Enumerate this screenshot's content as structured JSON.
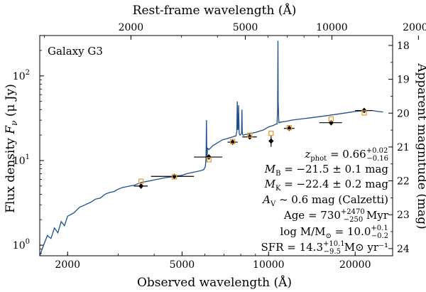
{
  "chart_data": {
    "type": "sed",
    "title": "",
    "panel_label": "Galaxy G3",
    "x_bottom": {
      "label": "Observed wavelength",
      "unit": "(Å)",
      "scale": "log",
      "range": [
        1600,
        27000
      ],
      "ticks": [
        2000,
        5000,
        10000,
        20000
      ],
      "tick_labels": [
        "2000",
        "5000",
        "10000",
        "20000"
      ]
    },
    "x_top": {
      "label": "Rest-frame wavelength",
      "unit": "(Å)",
      "scale": "log",
      "redshift": 0.66,
      "ticks": [
        2000,
        5000,
        10000,
        20000
      ],
      "tick_labels": [
        "2000",
        "5000",
        "10000",
        "20000"
      ]
    },
    "y_left": {
      "label": "Flux density",
      "symbol": "F",
      "symbol_sub": "ν",
      "unit": "(μ Jy)",
      "scale": "log",
      "range": [
        0.75,
        300
      ],
      "ticks": [
        1,
        10,
        100
      ],
      "tick_labels": [
        "10",
        "10",
        "10"
      ],
      "tick_exponents": [
        "0",
        "1",
        "2"
      ]
    },
    "y_right": {
      "label": "Apparent magnitude",
      "unit": "(mag)",
      "ticks": [
        18,
        19,
        20,
        21,
        22,
        23,
        24
      ],
      "tick_labels": [
        "18",
        "19",
        "20",
        "21",
        "22",
        "23",
        "24"
      ]
    },
    "model_color": "#1f4e8c",
    "observed_color": "#000000",
    "model_photometry_color": "#e8a13a",
    "model_spectrum": {
      "x": [
        1600,
        1650,
        1700,
        1750,
        1800,
        1850,
        1900,
        1950,
        2000,
        2100,
        2200,
        2300,
        2400,
        2500,
        2600,
        2700,
        2800,
        2900,
        3000,
        3100,
        3200,
        3300,
        3400,
        3500,
        3600,
        3700,
        3800,
        3900,
        4000,
        4200,
        4400,
        4600,
        4800,
        5000,
        5200,
        5400,
        5600,
        5800,
        5950,
        6030,
        6060,
        6080,
        6100,
        6130,
        6160,
        6200,
        6300,
        6400,
        6500,
        6600,
        6700,
        6800,
        6900,
        7000,
        7100,
        7200,
        7300,
        7400,
        7500,
        7600,
        7700,
        7750,
        7780,
        7800,
        7830,
        7860,
        7900,
        7950,
        8000,
        8050,
        8080,
        8100,
        8130,
        8200,
        8300,
        8500,
        8700,
        9000,
        9200,
        9400,
        9600,
        9800,
        10000,
        10200,
        10400,
        10600,
        10700,
        10750,
        10780,
        10800,
        10850,
        10900,
        11000,
        11500,
        12000,
        13000,
        14000,
        15000,
        16000,
        17000,
        18000,
        19000,
        20000,
        21000,
        22000,
        23000,
        24000,
        25000
      ],
      "y": [
        0.75,
        1.0,
        1.3,
        1.2,
        1.6,
        1.4,
        1.9,
        1.7,
        2.2,
        2.4,
        2.8,
        3.0,
        3.2,
        3.5,
        3.6,
        4.0,
        4.2,
        4.3,
        4.6,
        4.8,
        4.9,
        5.0,
        5.1,
        5.3,
        5.5,
        5.6,
        5.7,
        5.8,
        5.9,
        6.1,
        6.3,
        6.4,
        6.6,
        6.7,
        7.0,
        7.2,
        7.4,
        7.6,
        7.8,
        8.5,
        11.0,
        30.0,
        9.5,
        14.0,
        13.8,
        13.5,
        14.2,
        15.0,
        15.5,
        16.0,
        16.5,
        17.0,
        17.5,
        17.8,
        18.0,
        18.2,
        18.5,
        18.8,
        19.0,
        19.4,
        19.5,
        22.0,
        50.0,
        24.0,
        23.0,
        45.0,
        21.0,
        20.0,
        20.3,
        21.0,
        40.0,
        22.0,
        20.0,
        20.0,
        20.3,
        20.5,
        21.0,
        21.5,
        22.0,
        22.5,
        23.0,
        24.0,
        25.0,
        25.5,
        26.0,
        27.0,
        27.0,
        40.0,
        260.0,
        50.0,
        28.0,
        28.0,
        28.5,
        29.0,
        30.0,
        31.0,
        32.0,
        33.0,
        34.0,
        35.0,
        36.0,
        37.0,
        38.0,
        38.5,
        39.0,
        39.0,
        38.0,
        37.5
      ]
    },
    "observed_points": {
      "x": [
        3600,
        4700,
        6200,
        7500,
        8600,
        10200,
        11800,
        16500,
        21500
      ],
      "y": [
        5.0,
        6.5,
        11.0,
        16.5,
        19.0,
        17.0,
        24.0,
        28.0,
        39.0
      ],
      "xerr_low": [
        200,
        800,
        700,
        300,
        500,
        200,
        500,
        1500,
        1500
      ],
      "xerr_high": [
        200,
        800,
        700,
        300,
        500,
        200,
        500,
        1500,
        1500
      ],
      "yerr_low": [
        0.3,
        0.3,
        0.6,
        0.7,
        1.0,
        2.5,
        1.0,
        1.5,
        2.0
      ],
      "yerr_high": [
        0.3,
        0.3,
        0.6,
        0.7,
        1.0,
        2.5,
        1.0,
        1.5,
        2.0
      ]
    },
    "model_photometry": {
      "x": [
        3600,
        4700,
        6200,
        7500,
        8600,
        10200,
        11800,
        16500,
        21500
      ],
      "y": [
        5.7,
        6.4,
        10.2,
        16.8,
        20.0,
        21.0,
        24.5,
        31.0,
        36.5
      ]
    }
  },
  "info_lines": [
    {
      "pre": "z",
      "sub": "phot",
      "post": " = 0.66",
      "sup2": "+0.02",
      "sub2": "−0.16",
      "tail": ""
    },
    {
      "pre": "M",
      "sub": "B",
      "post": " = −21.5 ± 0.1 mag",
      "sup2": "",
      "sub2": "",
      "tail": ""
    },
    {
      "pre": "M",
      "sub": "K",
      "post": " = −22.4 ± 0.2 mag",
      "sup2": "",
      "sub2": "",
      "tail": ""
    },
    {
      "pre": "A",
      "sub": "V",
      "post": " ~ 0.6 mag (Calzetti)",
      "sup2": "",
      "sub2": "",
      "tail": ""
    },
    {
      "pre": "Age = 730",
      "sub": "",
      "post": "",
      "sup2": "+2470",
      "sub2": "−250",
      "tail": " Myr"
    },
    {
      "pre": "log M/M",
      "sub": "⊙",
      "post": " = 10.0",
      "sup2": "+0.1",
      "sub2": "−0.2",
      "tail": ""
    },
    {
      "pre": "SFR = 14.3",
      "sub": "",
      "post": "",
      "sup2": "+10.1",
      "sub2": "−9.5",
      "tail": " M⊙ yr⁻¹"
    }
  ]
}
